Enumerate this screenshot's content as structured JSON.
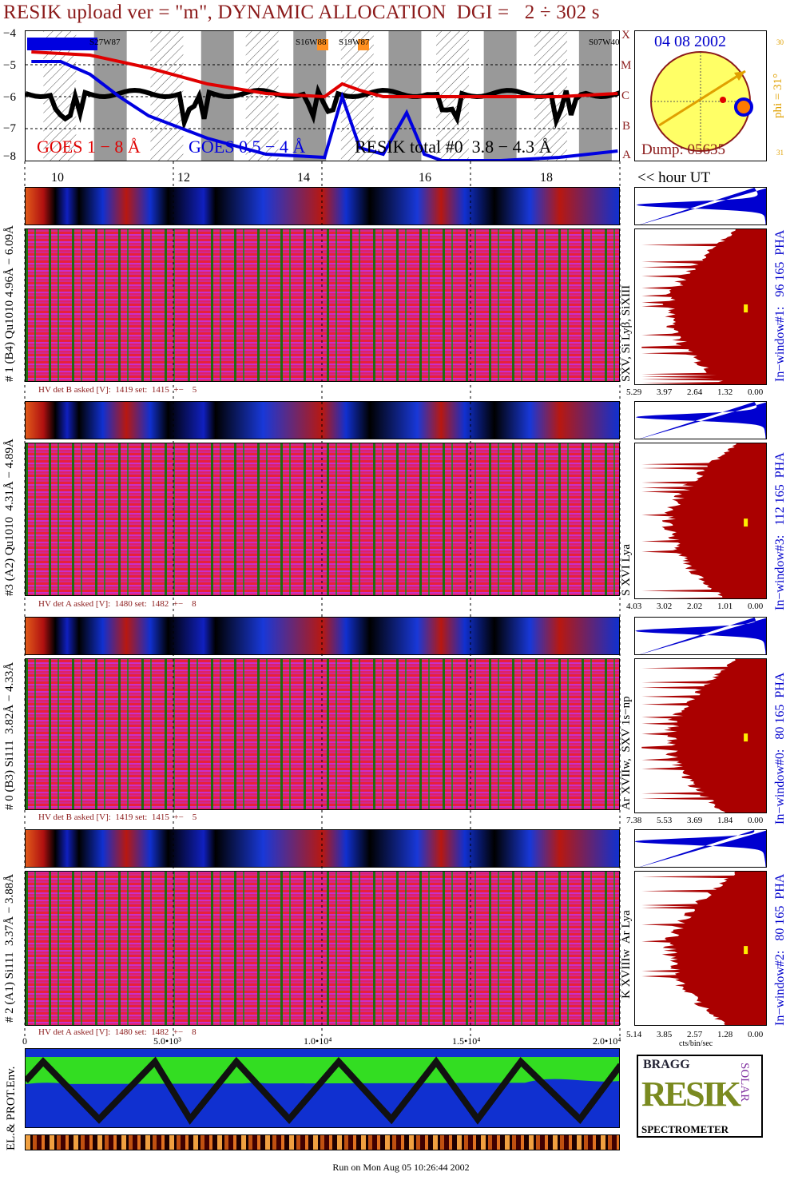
{
  "title": "RESIK upload ver = \"m\", DYNAMIC ALLOCATION  DGI =   2 ÷ 302 s",
  "colors": {
    "goes_long": "#e00000",
    "goes_short": "#0000e0",
    "resik": "#000000",
    "title": "#8b1a1a",
    "pha_hist": "#0000d0",
    "spec_hist": "#aa0000"
  },
  "goes_panel": {
    "y_ticks": [
      "−4",
      "−5",
      "−6",
      "−7",
      "−8"
    ],
    "flare_class_ticks": [
      "X",
      "M",
      "C",
      "B",
      "A"
    ],
    "region_labels": [
      "S27W87",
      "S16W88",
      "S19W87",
      "S07W40"
    ],
    "legend_long": "GOES 1 − 8 Å",
    "legend_short": "GOES 0.5 − 4 Å",
    "legend_resik": "RESIK total #0  3.8 − 4.3 Å"
  },
  "sun_panel": {
    "date": "04 08 2002",
    "dump": "Dump: 05635",
    "phi_label": "phi = 31°",
    "scale_top": "30",
    "scale_bottom": "31"
  },
  "time_axis": {
    "hour_ticks": [
      "10",
      "12",
      "14",
      "16",
      "18"
    ],
    "hour_unit": "<< hour UT"
  },
  "channels": [
    {
      "label": "# 1 (B4) Qu1010 4.96Å − 6.09Å",
      "hv": "HV det B asked [V]:  1419 set:  1415  +−    5",
      "right_label": "In−window#1:   96 165  PHA",
      "species": "SXV, Si Lyβ, SiXIII",
      "x_ticks": [
        "5.29",
        "3.97",
        "2.64",
        "1.32",
        "0.00"
      ]
    },
    {
      "label": "#3 (A2) Qu1010  4.31Å − 4.89Å",
      "hv": "HV det A asked [V]:  1480 set:  1482  +−    8",
      "right_label": "In−window#3:   112 165  PHA",
      "species": "S XVI Lya",
      "x_ticks": [
        "4.03",
        "3.02",
        "2.02",
        "1.01",
        "0.00"
      ]
    },
    {
      "label": "# 0 (B3) Si111  3.82Å − 4.33Å",
      "hv": "HV det B asked [V]:  1419 set:  1415  +−    5",
      "right_label": "In−window#0:   80 165  PHA",
      "species": "Ar XVIIw,  SXV 1s−np",
      "x_ticks": [
        "7.38",
        "5.53",
        "3.69",
        "1.84",
        "0.00"
      ]
    },
    {
      "label": "# 2 (A1) Si111  3.37Å − 3.88Å",
      "hv": "HV det A asked [V]:  1480 set:  1482  +−    8",
      "right_label": "In−window#2:   80 165  PHA",
      "species": "K XVIIIw  Ar Lya",
      "x_ticks": [
        "5.14",
        "3.85",
        "2.57",
        "1.28",
        "0.00"
      ]
    }
  ],
  "bottom_axis": {
    "ticks": [
      "0",
      "5.0•10³",
      "1.0•10⁴",
      "1.5•10⁴",
      "2.0•10⁴"
    ],
    "unit": "cts/bin/sec"
  },
  "env_label": "EL.& PROT.Env.",
  "logo": {
    "top": "BRAGG",
    "main": "RESIK",
    "side": "SOLAR",
    "bottom": "SPECTROMETER"
  },
  "footer": "Run on Mon Aug 05 10:26:44 2002",
  "chart_data": {
    "type": "line",
    "title": "RESIK upload ver = \"m\", DYNAMIC ALLOCATION  DGI =   2 ÷ 302 s",
    "xlabel": "hour UT",
    "x_ticks": [
      10,
      12,
      14,
      16,
      18
    ],
    "ylim": [
      -8,
      -4
    ],
    "series": [
      {
        "name": "GOES 1 − 8 Å",
        "x": [
          9.0,
          10.0,
          11.0,
          12.0,
          13.0,
          14.0,
          14.3,
          14.6,
          15.0,
          15.5,
          16.0,
          17.0,
          18.0,
          19.0
        ],
        "values": [
          -4.6,
          -4.7,
          -5.1,
          -5.6,
          -5.9,
          -6.0,
          -5.6,
          -5.8,
          -6.0,
          -6.0,
          -6.0,
          -6.0,
          -6.0,
          -5.9
        ]
      },
      {
        "name": "GOES 0.5 − 4 Å",
        "x": [
          9.0,
          9.5,
          10.0,
          10.5,
          11.0,
          12.0,
          13.0,
          14.0,
          14.3,
          14.6,
          15.0,
          15.4,
          15.7,
          16.0,
          17.0,
          18.0,
          19.0
        ],
        "values": [
          -4.9,
          -4.9,
          -5.3,
          -6.0,
          -6.6,
          -7.3,
          -7.8,
          -7.9,
          -6.0,
          -7.6,
          -7.8,
          -6.5,
          -7.8,
          -8.0,
          -8.0,
          -7.9,
          -7.7
        ]
      }
    ]
  }
}
